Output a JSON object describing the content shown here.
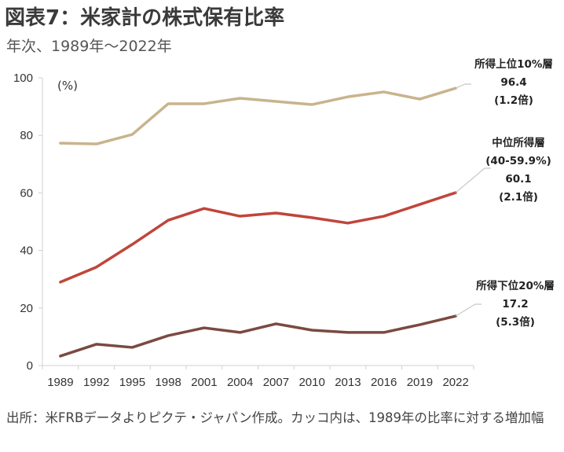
{
  "header": {
    "title": "図表7：米家計の株式保有比率",
    "subtitle": "年次、1989年～2022年"
  },
  "source_note": "出所：米FRBデータよりピクテ・ジャパン作成。カッコ内は、1989年の比率に対する増加幅",
  "chart_data": {
    "type": "line",
    "title": "図表7：米家計の株式保有比率",
    "subtitle": "年次、1989年～2022年",
    "xlabel": "",
    "ylabel": "(%)",
    "ylim": [
      0,
      100
    ],
    "yticks": [
      0,
      20,
      40,
      60,
      80,
      100
    ],
    "grid": false,
    "x": [
      "1989",
      "1992",
      "1995",
      "1998",
      "2001",
      "2004",
      "2007",
      "2010",
      "2013",
      "2016",
      "2019",
      "2022"
    ],
    "series": [
      {
        "name": "所得上位10%層",
        "color": "#c8b48c",
        "values": [
          77.3,
          77.0,
          80.3,
          91.0,
          91.0,
          92.9,
          91.8,
          90.7,
          93.4,
          95.1,
          92.6,
          96.4
        ],
        "label_lines": [
          "所得上位10%層",
          "96.4",
          "(1.2倍)"
        ]
      },
      {
        "name": "中位所得層(40-59.9%)",
        "color": "#c0453a",
        "values": [
          29.0,
          34.2,
          42.1,
          50.5,
          54.6,
          51.9,
          53.0,
          51.4,
          49.5,
          51.9,
          56.0,
          60.1
        ],
        "label_lines": [
          "中位所得層",
          "(40-59.9%)",
          "60.1",
          "(2.1倍)"
        ]
      },
      {
        "name": "所得下位20%層",
        "color": "#7a4a40",
        "values": [
          3.3,
          7.4,
          6.3,
          10.4,
          13.1,
          11.5,
          14.5,
          12.3,
          11.5,
          11.5,
          14.2,
          17.2
        ],
        "label_lines": [
          "所得下位20%層",
          "17.2",
          "(5.3倍)"
        ]
      }
    ]
  }
}
